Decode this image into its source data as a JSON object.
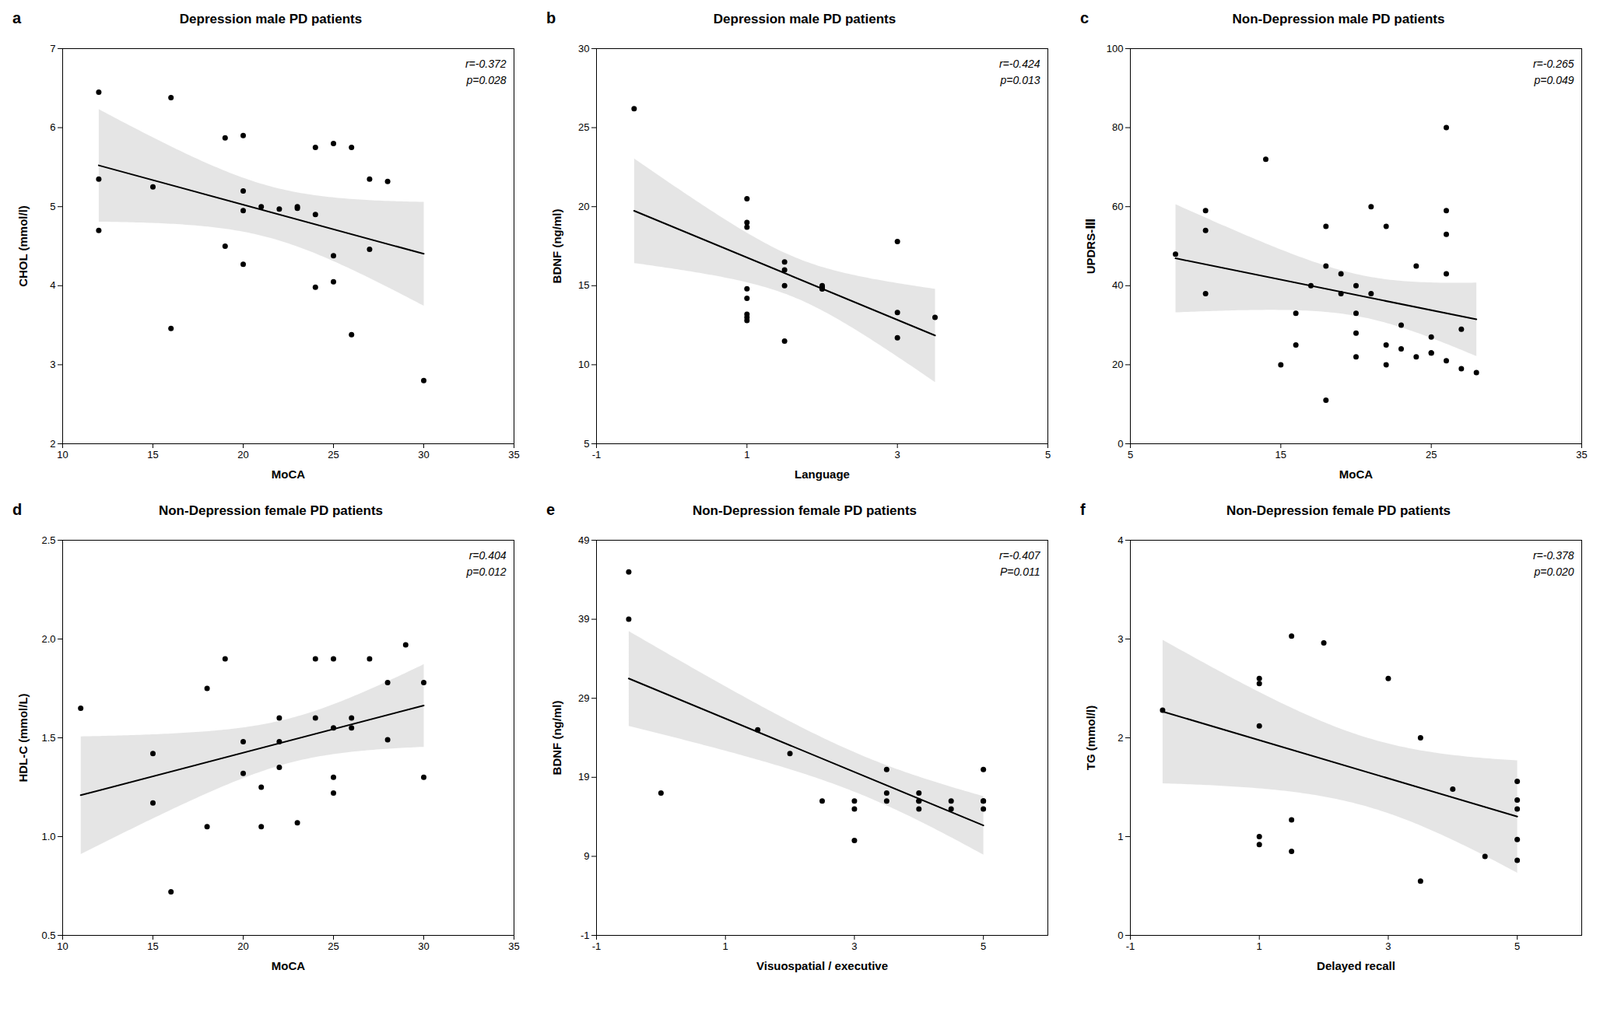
{
  "chart_data": [
    {
      "type": "scatter",
      "panel_label": "a",
      "title": "Depression male PD patients",
      "xlabel": "MoCA",
      "ylabel": "CHOL (mmol/l)",
      "annotations": [
        "r=-0.372",
        "p=0.028"
      ],
      "xlim": [
        10,
        35
      ],
      "ylim": [
        2,
        7
      ],
      "xticks": [
        10,
        15,
        20,
        25,
        30,
        35
      ],
      "yticks": [
        2,
        3,
        4,
        5,
        6,
        7
      ],
      "color": "#000000",
      "grid": false,
      "x": [
        12,
        12,
        12,
        15,
        16,
        16,
        19,
        19,
        20,
        20,
        20,
        20,
        21,
        22,
        23,
        23,
        24,
        24,
        24,
        25,
        25,
        25,
        26,
        26,
        27,
        27,
        28,
        30
      ],
      "values": [
        4.7,
        6.45,
        5.35,
        5.25,
        6.38,
        3.46,
        5.87,
        4.5,
        5.9,
        5.2,
        4.27,
        4.95,
        5.0,
        4.97,
        4.98,
        5.0,
        4.9,
        5.75,
        3.98,
        4.05,
        5.8,
        4.38,
        5.75,
        3.38,
        4.46,
        5.35,
        5.32,
        2.8
      ]
    },
    {
      "type": "scatter",
      "panel_label": "b",
      "title": "Depression male PD patients",
      "xlabel": "Language",
      "ylabel": "BDNF (ng/ml)",
      "annotations": [
        "r=-0.424",
        "p=0.013"
      ],
      "xlim": [
        -1,
        5
      ],
      "ylim": [
        5,
        30
      ],
      "xticks": [
        -1,
        1,
        3,
        5
      ],
      "yticks": [
        5,
        10,
        15,
        20,
        25,
        30
      ],
      "color": "#000000",
      "grid": false,
      "x": [
        -0.5,
        1.0,
        1.0,
        1.0,
        1.0,
        1.0,
        1.0,
        1.0,
        1.0,
        1.5,
        1.5,
        1.5,
        1.5,
        2.0,
        2.0,
        2.0,
        2.0,
        2.0,
        3.0,
        3.0,
        3.0,
        3.5
      ],
      "values": [
        26.2,
        14.2,
        13.0,
        12.8,
        13.2,
        14.8,
        20.5,
        18.7,
        19.0,
        16.5,
        16.0,
        15.0,
        11.5,
        14.9,
        14.8,
        14.9,
        15.0,
        14.8,
        17.8,
        13.3,
        11.7,
        13.0
      ]
    },
    {
      "type": "scatter",
      "panel_label": "c",
      "title": "Non-Depression male PD patients",
      "xlabel": "MoCA",
      "ylabel": "UPDRS-Ⅲ",
      "annotations": [
        "r=-0.265",
        "p=0.049"
      ],
      "xlim": [
        5,
        35
      ],
      "ylim": [
        0,
        100
      ],
      "xticks": [
        5,
        15,
        25,
        35
      ],
      "yticks": [
        0,
        20,
        40,
        60,
        80,
        100
      ],
      "color": "#000000",
      "grid": false,
      "x": [
        8,
        10,
        10,
        10,
        14,
        15,
        16,
        16,
        17,
        18,
        18,
        18,
        19,
        19,
        20,
        20,
        20,
        20,
        21,
        21,
        22,
        22,
        22,
        23,
        23,
        24,
        24,
        25,
        25,
        25,
        26,
        26,
        26,
        26,
        26,
        27,
        27,
        28
      ],
      "values": [
        48,
        59,
        54,
        38,
        72,
        20,
        33,
        25,
        40,
        55,
        45,
        11,
        43,
        38,
        40,
        33,
        28,
        22,
        60,
        38,
        55,
        25,
        20,
        30,
        24,
        22,
        45,
        23,
        27,
        23,
        80,
        59,
        53,
        43,
        21,
        29,
        19,
        18
      ]
    },
    {
      "type": "scatter",
      "panel_label": "d",
      "title": "Non-Depression female PD patients",
      "xlabel": "MoCA",
      "ylabel": "HDL-C (mmol/L)",
      "annotations": [
        "r=0.404",
        "p=0.012"
      ],
      "xlim": [
        10,
        35
      ],
      "ylim": [
        0.5,
        2.5
      ],
      "xticks": [
        10,
        15,
        20,
        25,
        30,
        35
      ],
      "yticks": [
        0.5,
        {
          "value": 1,
          "label": "1.0"
        },
        1.5,
        {
          "value": 2,
          "label": "2.0"
        },
        2.5
      ],
      "color": "#000000",
      "grid": false,
      "x": [
        11,
        15,
        15,
        16,
        18,
        18,
        19,
        20,
        20,
        21,
        21,
        22,
        22,
        22,
        23,
        24,
        24,
        25,
        25,
        25,
        25,
        26,
        26,
        27,
        28,
        28,
        29,
        30,
        30
      ],
      "values": [
        1.65,
        1.42,
        1.17,
        0.72,
        1.75,
        1.05,
        1.9,
        1.32,
        1.48,
        1.25,
        1.05,
        1.6,
        1.35,
        1.48,
        1.07,
        1.6,
        1.9,
        1.55,
        1.3,
        1.9,
        1.22,
        1.6,
        1.55,
        1.9,
        1.78,
        1.49,
        1.97,
        1.78,
        1.3
      ]
    },
    {
      "type": "scatter",
      "panel_label": "e",
      "title": "Non-Depression female PD patients",
      "xlabel": "Visuospatial / executive",
      "ylabel": "BDNF (ng/ml)",
      "annotations": [
        "r=-0.407",
        "P=0.011"
      ],
      "xlim": [
        -1,
        6
      ],
      "ylim": [
        -1,
        49
      ],
      "xticks": [
        -1,
        1,
        3,
        5
      ],
      "yticks": [
        -1,
        9,
        19,
        29,
        39,
        49
      ],
      "color": "#000000",
      "grid": false,
      "x": [
        -0.5,
        -0.5,
        0.0,
        1.5,
        2.0,
        2.5,
        3.0,
        3.0,
        3.0,
        3.5,
        3.5,
        3.5,
        4.0,
        4.0,
        4.0,
        4.0,
        4.5,
        4.5,
        5.0,
        5.0,
        5.0,
        5.0
      ],
      "values": [
        45,
        39,
        17,
        25,
        22,
        16,
        16,
        15,
        11,
        20,
        17,
        16,
        16,
        15,
        17,
        16,
        15,
        16,
        20,
        16,
        15,
        16
      ]
    },
    {
      "type": "scatter",
      "panel_label": "f",
      "title": "Non-Depression female PD patients",
      "xlabel": "Delayed recall",
      "ylabel": "TG (mmol/l)",
      "annotations": [
        "r=-0.378",
        "p=0.020"
      ],
      "xlim": [
        -1,
        6
      ],
      "ylim": [
        0,
        4
      ],
      "xticks": [
        -1,
        1,
        3,
        5
      ],
      "yticks": [
        0,
        1,
        2,
        3,
        4
      ],
      "color": "#000000",
      "grid": false,
      "x": [
        -0.5,
        1.0,
        1.0,
        1.0,
        1.0,
        1.0,
        1.5,
        1.5,
        1.5,
        2.0,
        3.0,
        3.5,
        3.5,
        4.0,
        4.5,
        5.0,
        5.0,
        5.0,
        5.0,
        5.0
      ],
      "values": [
        2.28,
        1.0,
        2.55,
        2.12,
        2.6,
        0.92,
        1.17,
        0.85,
        3.03,
        2.96,
        2.6,
        2.0,
        0.55,
        1.48,
        0.8,
        0.76,
        1.37,
        1.28,
        0.97,
        1.56
      ]
    }
  ]
}
